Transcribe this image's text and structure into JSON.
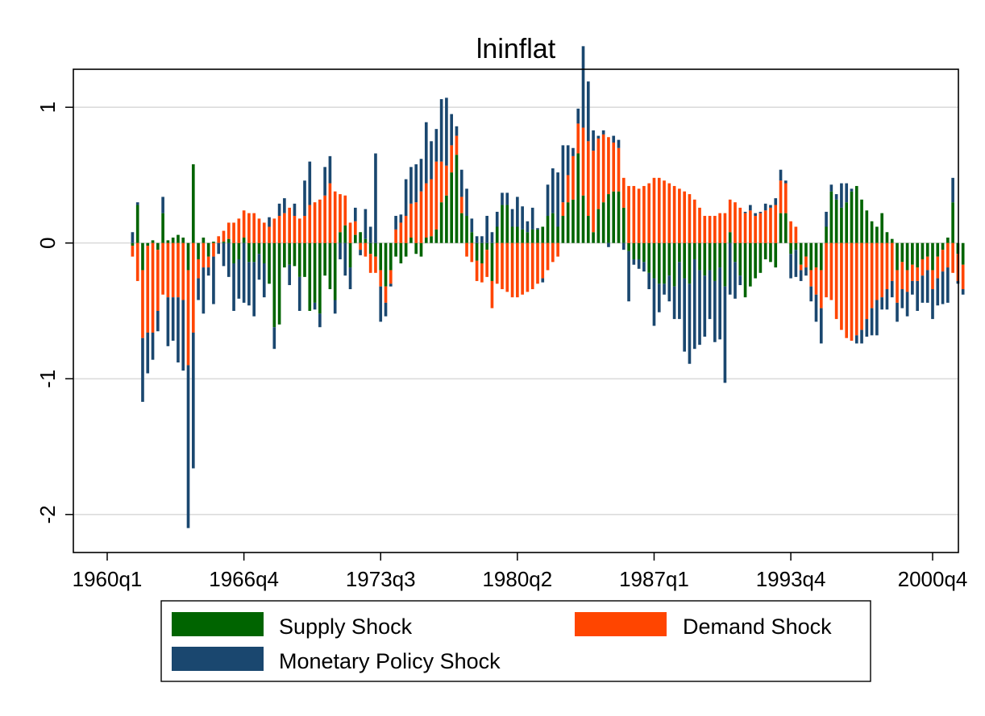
{
  "chart_data": {
    "type": "bar",
    "stacked": true,
    "title": "lninflat",
    "xlabel": "",
    "ylabel": "",
    "ylim": [
      -2.28,
      1.28
    ],
    "yticks": [
      -2,
      -1,
      0,
      1
    ],
    "y_tick_labels": [
      "-2",
      "-1",
      "0",
      "1"
    ],
    "x_tick_labels": [
      "1960q1",
      "1966q4",
      "1973q3",
      "1980q2",
      "1987q1",
      "1993q4",
      "2000q4"
    ],
    "grid": true,
    "legend_position": "bottom",
    "colors": {
      "supply": "#006400",
      "demand": "#ff4500",
      "monetary": "#1a476f"
    },
    "series": [
      {
        "name": "Supply Shock",
        "key": "supply"
      },
      {
        "name": "Demand Shock",
        "key": "demand"
      },
      {
        "name": "Monetary Policy Shock",
        "key": "monetary"
      }
    ],
    "x_start": "1961q2",
    "x_end": "2000q4",
    "values": {
      "supply": [
        -0.02,
        0.28,
        -0.2,
        -0.02,
        0.02,
        -0.05,
        0.22,
        0.02,
        0.04,
        0.06,
        0.04,
        -0.2,
        0.58,
        -0.12,
        0.04,
        -0.1,
        0.01,
        0,
        0.01,
        0.03,
        -0.15,
        -0.12,
        0.04,
        -0.14,
        -0.14,
        -0.08,
        -0.15,
        -0.3,
        -0.62,
        -0.6,
        -0.18,
        -0.16,
        -0.17,
        -0.25,
        -0.25,
        -0.5,
        -0.44,
        -0.52,
        -0.24,
        -0.34,
        -0.42,
        0.08,
        0.13,
        -0.18,
        0.06,
        0.08,
        0.03,
        -0.08,
        -0.1,
        -0.2,
        -0.32,
        -0.2,
        -0.1,
        -0.15,
        -0.1,
        0.04,
        -0.08,
        -0.1,
        0.04,
        0.05,
        0.1,
        0.3,
        0.35,
        0.52,
        0.65,
        0.22,
        0.2,
        0.08,
        -0.13,
        -0.15,
        -0.05,
        -0.28,
        0.12,
        0.28,
        0.28,
        0.12,
        0.12,
        0.1,
        0.08,
        0.1,
        0.1,
        0.12,
        0.2,
        0.22,
        0.12,
        0.2,
        0.3,
        0.32,
        0.66,
        0.35,
        0.2,
        0.08,
        0.25,
        0.3,
        0.36,
        0.38,
        0.38,
        0.26,
        -0.06,
        -0.12,
        -0.12,
        -0.14,
        -0.22,
        -0.26,
        -0.3,
        -0.3,
        -0.24,
        -0.32,
        -0.14,
        -0.26,
        -0.3,
        -0.12,
        -0.2,
        -0.24,
        -0.2,
        -0.28,
        -0.18,
        -0.32,
        0.08,
        -0.14,
        -0.24,
        -0.4,
        -0.32,
        -0.26,
        -0.22,
        -0.12,
        -0.14,
        -0.18,
        0.22,
        0.22,
        -0.08,
        -0.05,
        -0.16,
        -0.1,
        -0.2,
        -0.18,
        -0.2,
        0.12,
        0.38,
        0.32,
        0.26,
        0.3,
        0.38,
        0.42,
        0.32,
        0.24,
        0.16,
        0.12,
        0.22,
        0.08,
        0.03,
        -0.2,
        -0.14,
        -0.2,
        -0.16,
        -0.18,
        -0.12,
        -0.1,
        -0.2,
        -0.1,
        -0.05,
        0.04,
        0.3,
        -0.08,
        -0.16
      ],
      "demand": [
        -0.08,
        -0.28,
        -0.5,
        -0.64,
        -0.66,
        -0.45,
        -0.38,
        -0.4,
        -0.4,
        -0.4,
        -0.42,
        -0.7,
        -0.66,
        -0.14,
        -0.18,
        -0.08,
        -0.1,
        0.05,
        0.08,
        0.12,
        0.15,
        0.18,
        0.2,
        0.22,
        0.22,
        0.18,
        0.15,
        0.12,
        0.18,
        0.2,
        0.22,
        0.26,
        0.2,
        0.18,
        0.2,
        0.28,
        0.3,
        0.32,
        0.35,
        0.44,
        0.38,
        0.28,
        0.22,
        0.15,
        0.1,
        -0.05,
        -0.1,
        -0.14,
        -0.12,
        -0.12,
        -0.12,
        -0.1,
        0.1,
        0.15,
        0.2,
        0.25,
        0.3,
        0.38,
        0.4,
        0.42,
        0.5,
        0.3,
        0.22,
        0.2,
        0.14,
        0.12,
        -0.1,
        -0.14,
        -0.15,
        -0.14,
        -0.2,
        -0.2,
        -0.3,
        -0.34,
        -0.36,
        -0.4,
        -0.4,
        -0.38,
        -0.36,
        -0.34,
        -0.3,
        -0.26,
        -0.2,
        -0.14,
        -0.1,
        0.1,
        0.2,
        0.32,
        0.22,
        0.5,
        0.55,
        0.6,
        0.52,
        0.5,
        0.42,
        0.36,
        0.32,
        0.22,
        0.42,
        0.42,
        0.4,
        0.42,
        0.44,
        0.48,
        0.48,
        0.46,
        0.44,
        0.42,
        0.4,
        0.38,
        0.36,
        0.32,
        0.26,
        0.2,
        0.2,
        0.2,
        0.22,
        0.22,
        0.24,
        0.3,
        0.26,
        0.22,
        0.24,
        0.2,
        0.22,
        0.24,
        0.26,
        0.28,
        0.24,
        0.22,
        0.16,
        0.12,
        -0.04,
        -0.08,
        -0.12,
        -0.2,
        -0.28,
        -0.4,
        -0.42,
        -0.56,
        -0.64,
        -0.7,
        -0.72,
        -0.68,
        -0.64,
        -0.56,
        -0.48,
        -0.42,
        -0.4,
        -0.34,
        -0.28,
        -0.24,
        -0.2,
        -0.16,
        -0.12,
        -0.1,
        -0.12,
        -0.1,
        -0.14,
        -0.16,
        -0.16,
        -0.18,
        -0.22,
        -0.2,
        -0.18,
        -0.16,
        -0.18,
        0.04,
        0.08,
        0.08
      ],
      "monetary": [
        0.08,
        0.02,
        -0.47,
        -0.3,
        -0.2,
        -0.15,
        0.12,
        -0.36,
        -0.32,
        -0.48,
        -0.52,
        -1.2,
        -1.0,
        -0.16,
        -0.34,
        -0.06,
        -0.35,
        -0.08,
        -0.17,
        -0.25,
        -0.35,
        -0.29,
        -0.44,
        -0.32,
        -0.4,
        -0.19,
        -0.25,
        0.07,
        -0.16,
        0.09,
        0.11,
        -0.15,
        0.09,
        -0.25,
        0.26,
        0.32,
        -0.05,
        -0.1,
        0.21,
        0.2,
        -0.1,
        -0.12,
        -0.24,
        -0.16,
        0.1,
        -0.04,
        0.22,
        0.12,
        0.66,
        -0.26,
        -0.1,
        -0.02,
        0.1,
        0.06,
        0.27,
        0.27,
        0.28,
        0.24,
        0.45,
        0.28,
        0.24,
        0.46,
        0.5,
        0.23,
        0.07,
        0.2,
        0.2,
        0.1,
        0.05,
        0.05,
        0.2,
        0.08,
        0.11,
        0.09,
        0.09,
        0.13,
        0.22,
        0.17,
        0.08,
        0.16,
        0.01,
        -0.03,
        0.23,
        0.33,
        0.4,
        0.42,
        0.22,
        0.06,
        0.11,
        0.6,
        0.44,
        0.15,
        0.02,
        0.03,
        -0.03,
        0.05,
        0.06,
        -0.05,
        -0.37,
        -0.04,
        -0.07,
        -0.07,
        -0.12,
        -0.35,
        -0.21,
        -0.08,
        -0.19,
        -0.24,
        -0.42,
        -0.54,
        -0.59,
        -0.66,
        -0.55,
        -0.45,
        -0.36,
        -0.45,
        -0.53,
        -0.71,
        -0.38,
        -0.27,
        -0.07,
        0.01,
        0.04,
        0.02,
        0.01,
        0.05,
        0.02,
        0.05,
        0.08,
        0.02,
        -0.18,
        -0.2,
        -0.08,
        -0.06,
        -0.11,
        -0.2,
        -0.26,
        0.11,
        0.05,
        0.04,
        0.18,
        0.14,
        0.02,
        -0.06,
        -0.1,
        -0.13,
        -0.2,
        -0.26,
        -0.09,
        -0.15,
        -0.12,
        -0.14,
        -0.14,
        -0.18,
        -0.1,
        -0.22,
        -0.2,
        -0.24,
        -0.22,
        -0.2,
        -0.24,
        -0.26,
        0.18,
        -0.02,
        -0.04
      ]
    }
  }
}
